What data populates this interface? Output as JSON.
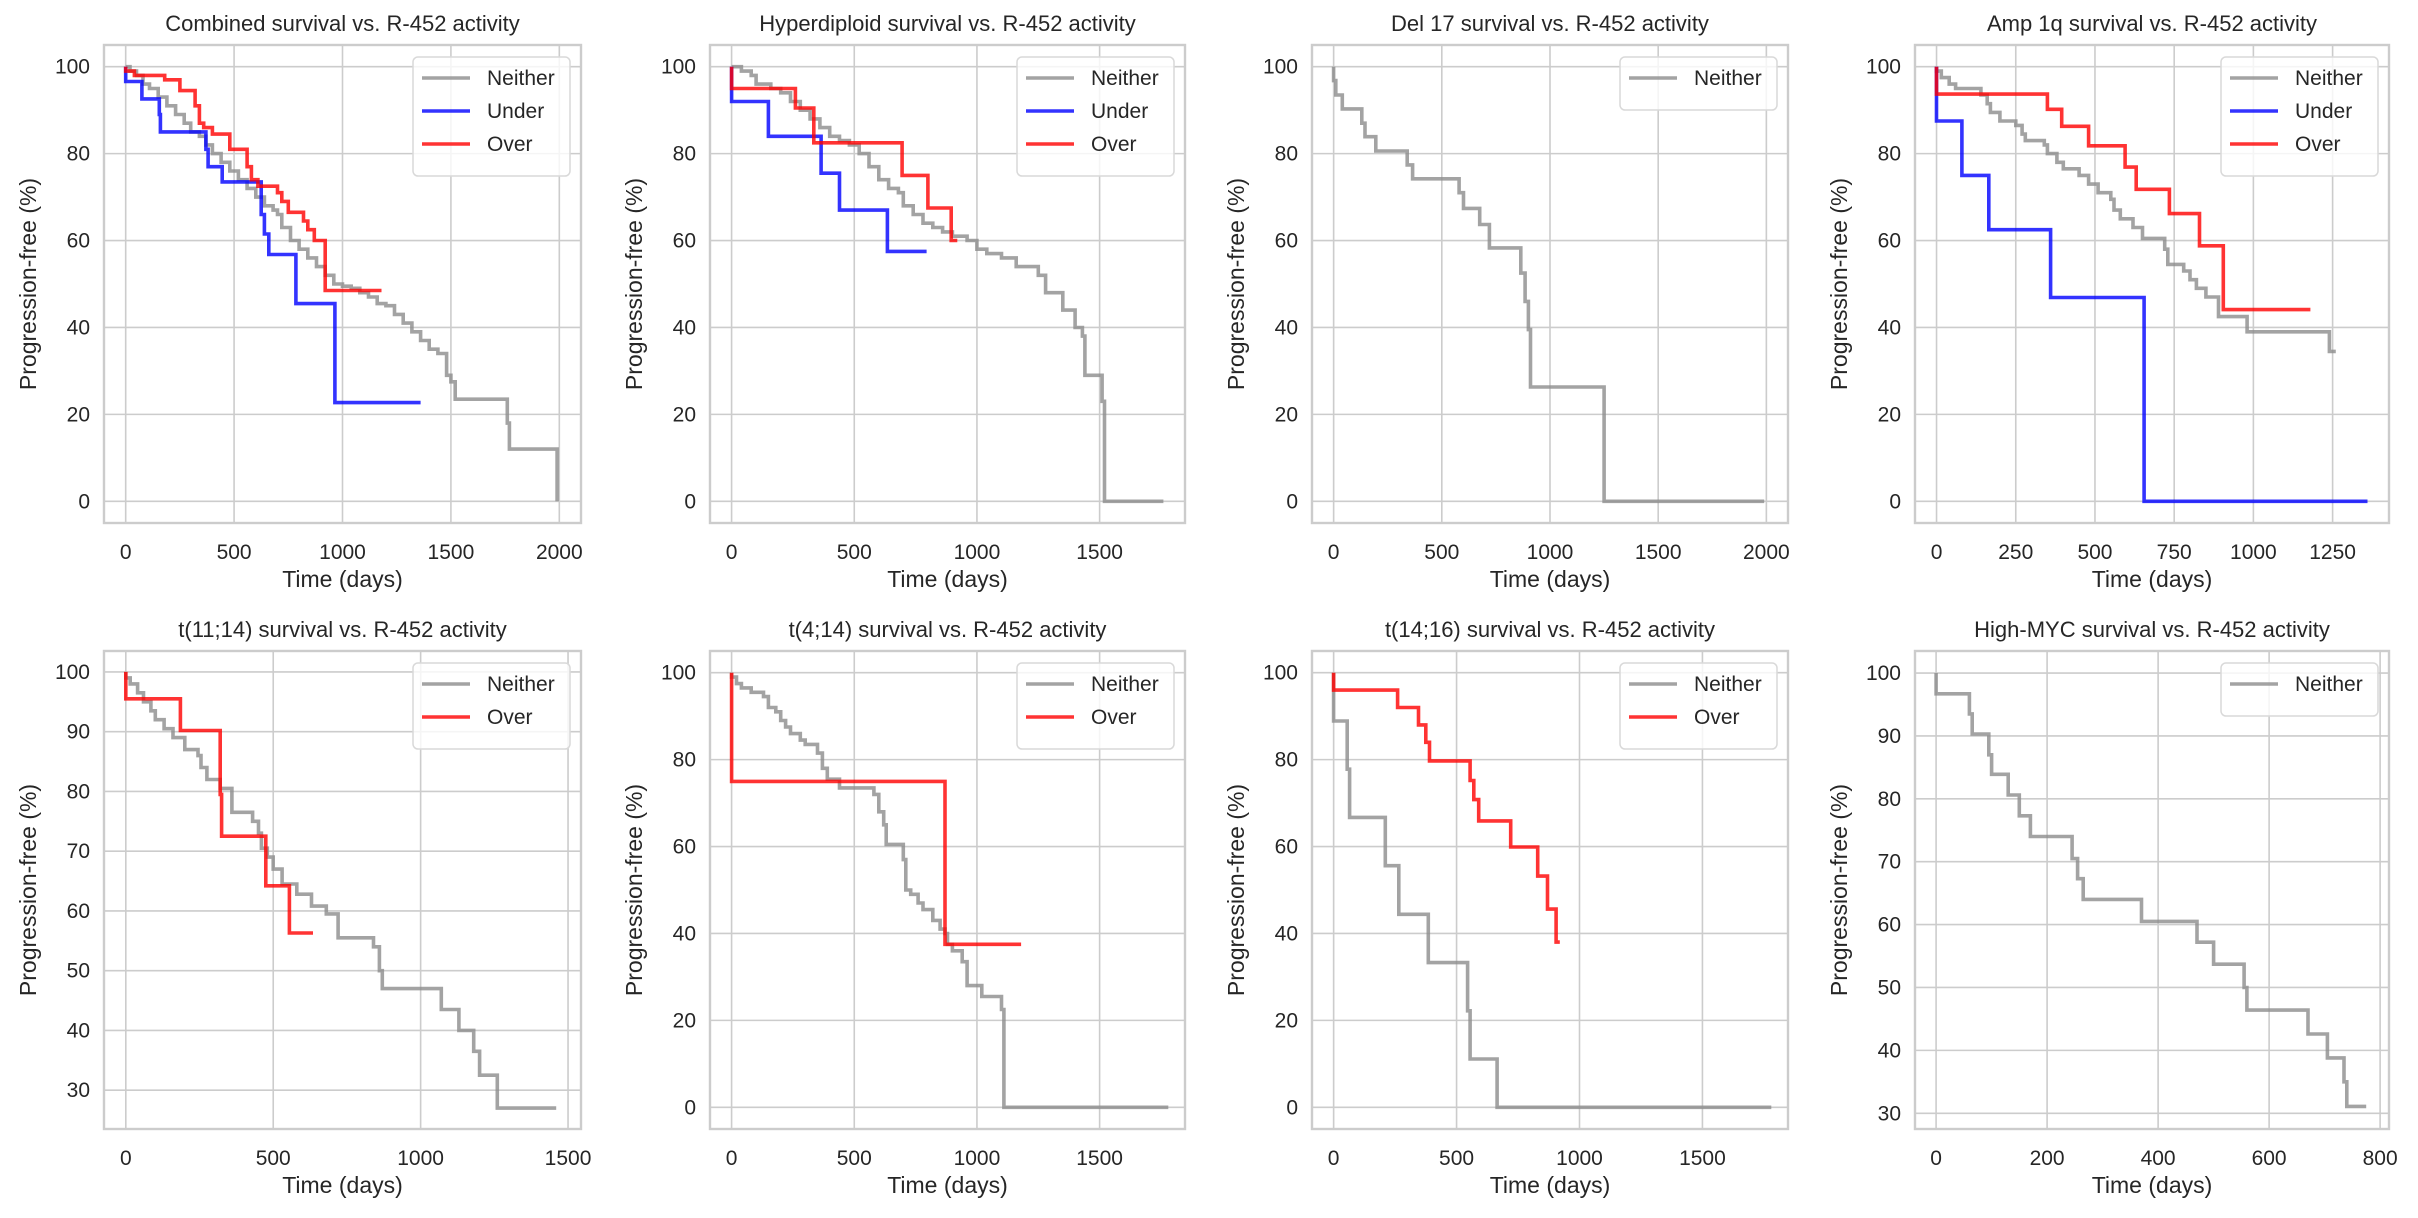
{
  "figure": {
    "legend_colors": {
      "Neither": "#8c8c8c",
      "Under": "#0000ff",
      "Over": "#ff0000"
    },
    "xlabel": "Time (days)",
    "ylabel": "Progression-free (%)"
  },
  "chart_data": [
    {
      "type": "line",
      "title": "Combined survival vs. R-452 activity",
      "xlabel": "Time (days)",
      "ylabel": "Progression-free (%)",
      "xlim": [
        -100,
        2100
      ],
      "ylim": [
        -5,
        105
      ],
      "xticks": [
        0,
        500,
        1000,
        1500,
        2000
      ],
      "yticks": [
        0,
        20,
        40,
        60,
        80,
        100
      ],
      "grid": true,
      "legend": "top-right",
      "series": [
        {
          "name": "Neither",
          "step": true,
          "x": [
            0,
            20,
            50,
            80,
            110,
            150,
            190,
            230,
            270,
            300,
            340,
            370,
            400,
            440,
            480,
            520,
            560,
            600,
            640,
            680,
            700,
            720,
            760,
            800,
            840,
            880,
            920,
            960,
            1000,
            1040,
            1080,
            1120,
            1160,
            1200,
            1240,
            1280,
            1320,
            1360,
            1400,
            1420,
            1440,
            1480,
            1500,
            1520,
            1760,
            1770,
            1990
          ],
          "y": [
            100,
            99,
            98,
            96,
            95,
            93,
            91,
            89,
            87,
            85,
            84,
            82,
            80,
            78,
            76,
            74,
            72,
            70,
            68,
            67,
            66,
            63,
            60,
            58,
            56,
            54,
            52,
            50,
            49.5,
            49,
            48,
            47,
            45.5,
            45,
            43,
            41,
            39,
            37,
            35,
            35,
            34,
            29,
            27.5,
            23.5,
            18,
            12,
            0
          ]
        },
        {
          "name": "Under",
          "step": true,
          "x": [
            0,
            75,
            155,
            160,
            370,
            380,
            445,
            625,
            640,
            660,
            785,
            965,
            1360
          ],
          "y": [
            96.6,
            92.6,
            89,
            85,
            81,
            77,
            73.5,
            66,
            61.5,
            56.8,
            45.5,
            22.7,
            22.7
          ]
        },
        {
          "name": "Over",
          "step": true,
          "x": [
            0,
            40,
            180,
            250,
            320,
            340,
            360,
            400,
            480,
            560,
            580,
            610,
            700,
            720,
            750,
            820,
            840,
            870,
            920,
            1180
          ],
          "y": [
            99,
            98,
            97,
            94.5,
            91,
            87,
            86,
            84.5,
            81,
            77,
            74,
            72.5,
            71,
            69,
            66.5,
            64.5,
            62.5,
            60,
            48.5,
            48.5
          ]
        }
      ]
    },
    {
      "type": "line",
      "title": "Hyperdiploid survival vs. R-452 activity",
      "xlabel": "Time (days)",
      "ylabel": "Progression-free (%)",
      "xlim": [
        -88,
        1848
      ],
      "ylim": [
        -5,
        105
      ],
      "xticks": [
        0,
        500,
        1000,
        1500
      ],
      "yticks": [
        0,
        20,
        40,
        60,
        80,
        100
      ],
      "grid": true,
      "legend": "top-right",
      "series": [
        {
          "name": "Neither",
          "step": true,
          "x": [
            0,
            40,
            80,
            100,
            160,
            200,
            240,
            280,
            320,
            360,
            400,
            440,
            480,
            520,
            560,
            600,
            640,
            680,
            700,
            740,
            780,
            820,
            860,
            900,
            960,
            1000,
            1040,
            1100,
            1160,
            1200,
            1250,
            1280,
            1320,
            1350,
            1400,
            1430,
            1440,
            1510,
            1520,
            1760
          ],
          "y": [
            100,
            99,
            98,
            96,
            95,
            94,
            92,
            90,
            88,
            86,
            84,
            83,
            82,
            80,
            77,
            74,
            72,
            71,
            68,
            66,
            64,
            63,
            62,
            61,
            60,
            58,
            57,
            56,
            54,
            54,
            52,
            48,
            48,
            44,
            40,
            38,
            29,
            23,
            0,
            0
          ]
        },
        {
          "name": "Under",
          "step": true,
          "x": [
            0,
            150,
            365,
            440,
            635,
            795
          ],
          "y": [
            92,
            84,
            75.5,
            67,
            57.5,
            57.5
          ]
        },
        {
          "name": "Over",
          "step": true,
          "x": [
            0,
            260,
            335,
            695,
            800,
            895,
            920
          ],
          "y": [
            95,
            90.5,
            82.5,
            75,
            67.5,
            60,
            60
          ]
        }
      ]
    },
    {
      "type": "line",
      "title": "Del 17 survival vs. R-452 activity",
      "xlabel": "Time (days)",
      "ylabel": "Progression-free (%)",
      "xlim": [
        -100,
        2100
      ],
      "ylim": [
        -5,
        105
      ],
      "xticks": [
        0,
        500,
        1000,
        1500,
        2000
      ],
      "yticks": [
        0,
        20,
        40,
        60,
        80,
        100
      ],
      "grid": true,
      "legend": "top-right",
      "series": [
        {
          "name": "Neither",
          "step": true,
          "x": [
            0,
            10,
            40,
            130,
            145,
            195,
            340,
            365,
            580,
            600,
            675,
            720,
            865,
            885,
            900,
            910,
            1250,
            1990
          ],
          "y": [
            96.8,
            93.5,
            90.3,
            87,
            83.9,
            80.6,
            77.4,
            74.2,
            71,
            67.4,
            63.7,
            58.3,
            52.5,
            46,
            39.5,
            26.3,
            0,
            0
          ]
        }
      ]
    },
    {
      "type": "line",
      "title": "Amp 1q survival vs. R-452 activity",
      "xlabel": "Time (days)",
      "ylabel": "Progression-free (%)",
      "xlim": [
        -68,
        1428
      ],
      "ylim": [
        -5,
        105
      ],
      "xticks": [
        0,
        250,
        500,
        750,
        1000,
        1250
      ],
      "yticks": [
        0,
        20,
        40,
        60,
        80,
        100
      ],
      "grid": true,
      "legend": "top-right",
      "series": [
        {
          "name": "Neither",
          "step": true,
          "x": [
            0,
            15,
            40,
            60,
            140,
            160,
            170,
            200,
            250,
            270,
            280,
            340,
            350,
            380,
            400,
            450,
            480,
            510,
            550,
            560,
            580,
            620,
            650,
            720,
            730,
            780,
            800,
            820,
            850,
            890,
            980,
            1240,
            1260
          ],
          "y": [
            99,
            97.5,
            96,
            95,
            93.5,
            91.5,
            89.5,
            87.5,
            86.5,
            84.5,
            83,
            82,
            80,
            78,
            76.5,
            75,
            73,
            71,
            69.5,
            67,
            65,
            63,
            60.5,
            58,
            54.5,
            53,
            51,
            49,
            47,
            42.5,
            39,
            34.5,
            34.5
          ]
        },
        {
          "name": "Under",
          "step": true,
          "x": [
            0,
            80,
            165,
            360,
            655,
            1360
          ],
          "y": [
            87.5,
            75,
            62.5,
            46.9,
            0,
            0
          ]
        },
        {
          "name": "Over",
          "step": true,
          "x": [
            0,
            350,
            395,
            480,
            595,
            630,
            735,
            830,
            905,
            1180
          ],
          "y": [
            93.7,
            90.2,
            86.3,
            81.8,
            76.9,
            71.8,
            66.2,
            58.8,
            44.1,
            44.1
          ]
        }
      ]
    },
    {
      "type": "line",
      "title": "t(11;14) survival vs. R-452 activity",
      "xlabel": "Time (days)",
      "ylabel": "Progression-free (%)",
      "xlim": [
        -74,
        1544
      ],
      "ylim": [
        23.5,
        103.5
      ],
      "xticks": [
        0,
        500,
        1000,
        1500
      ],
      "yticks": [
        30,
        40,
        50,
        60,
        70,
        80,
        90,
        100
      ],
      "grid": true,
      "legend": "top-right",
      "series": [
        {
          "name": "Neither",
          "step": true,
          "x": [
            0,
            15,
            40,
            60,
            85,
            100,
            130,
            160,
            200,
            245,
            255,
            275,
            320,
            360,
            430,
            450,
            460,
            480,
            500,
            530,
            580,
            630,
            680,
            720,
            840,
            860,
            870,
            1070,
            1130,
            1180,
            1200,
            1260,
            1460
          ],
          "y": [
            99,
            98,
            96.5,
            95,
            93.5,
            92,
            90.5,
            89,
            87,
            86,
            84,
            82,
            80.5,
            76.5,
            75,
            73,
            70.5,
            69,
            67,
            64.5,
            62.8,
            60.8,
            59.5,
            55.5,
            54,
            50,
            47,
            43.5,
            40,
            36.5,
            32.5,
            27,
            27
          ]
        },
        {
          "name": "Over",
          "step": true,
          "x": [
            0,
            185,
            320,
            325,
            475,
            555,
            635
          ],
          "y": [
            95.5,
            90.2,
            79.5,
            72.5,
            64.2,
            56.3,
            56.3
          ]
        }
      ]
    },
    {
      "type": "line",
      "title": "t(4;14) survival vs. R-452 activity",
      "xlabel": "Time (days)",
      "ylabel": "Progression-free (%)",
      "xlim": [
        -88,
        1848
      ],
      "ylim": [
        -5,
        105
      ],
      "xticks": [
        0,
        500,
        1000,
        1500
      ],
      "yticks": [
        0,
        20,
        40,
        60,
        80,
        100
      ],
      "grid": true,
      "legend": "top-right",
      "series": [
        {
          "name": "Neither",
          "step": true,
          "x": [
            0,
            20,
            40,
            80,
            130,
            150,
            180,
            200,
            220,
            240,
            280,
            300,
            350,
            370,
            390,
            440,
            580,
            600,
            620,
            630,
            700,
            710,
            730,
            760,
            780,
            820,
            850,
            870,
            880,
            900,
            940,
            960,
            1020,
            1100,
            1110,
            1780
          ],
          "y": [
            99,
            97.5,
            96.5,
            95.5,
            94.5,
            92,
            91,
            89,
            87.5,
            86,
            84.5,
            83.5,
            81.5,
            78,
            75.5,
            73.5,
            72,
            68,
            65,
            60.5,
            57,
            50,
            49,
            47,
            45.5,
            43,
            41,
            40,
            37.5,
            36,
            33.5,
            28,
            25.5,
            22.5,
            0,
            0
          ]
        },
        {
          "name": "Over",
          "step": true,
          "x": [
            0,
            870,
            1180
          ],
          "y": [
            75,
            37.5,
            37.5
          ]
        }
      ]
    },
    {
      "type": "line",
      "title": "t(14;16) survival vs. R-452 activity",
      "xlabel": "Time (days)",
      "ylabel": "Progression-free (%)",
      "xlim": [
        -88,
        1848
      ],
      "ylim": [
        -5,
        105
      ],
      "xticks": [
        0,
        500,
        1000,
        1500
      ],
      "yticks": [
        0,
        20,
        40,
        60,
        80,
        100
      ],
      "grid": true,
      "legend": "top-right",
      "series": [
        {
          "name": "Neither",
          "step": true,
          "x": [
            0,
            55,
            65,
            210,
            265,
            385,
            545,
            555,
            665,
            1780
          ],
          "y": [
            88.9,
            77.8,
            66.7,
            55.6,
            44.4,
            33.3,
            22.2,
            11.1,
            0,
            0
          ]
        },
        {
          "name": "Over",
          "step": true,
          "x": [
            0,
            260,
            345,
            375,
            390,
            555,
            570,
            590,
            720,
            830,
            870,
            905,
            920
          ],
          "y": [
            96,
            92,
            88,
            84,
            79.7,
            75.2,
            70.8,
            65.9,
            59.9,
            53.2,
            45.6,
            38,
            38
          ]
        }
      ]
    },
    {
      "type": "line",
      "title": "High-MYC survival vs. R-452 activity",
      "xlabel": "Time (days)",
      "ylabel": "Progression-free (%)",
      "xlim": [
        -38,
        816
      ],
      "ylim": [
        27.5,
        103.5
      ],
      "xticks": [
        0,
        200,
        400,
        600,
        800
      ],
      "yticks": [
        30,
        40,
        50,
        60,
        70,
        80,
        90,
        100
      ],
      "grid": true,
      "legend": "top-right",
      "series": [
        {
          "name": "Neither",
          "step": true,
          "x": [
            0,
            60,
            65,
            95,
            100,
            130,
            150,
            170,
            245,
            255,
            265,
            370,
            470,
            500,
            555,
            560,
            670,
            705,
            735,
            740,
            775
          ],
          "y": [
            96.7,
            93.5,
            90.3,
            87,
            83.9,
            80.6,
            77.3,
            74,
            70.5,
            67.3,
            64,
            60.5,
            57.2,
            53.7,
            50,
            46.4,
            42.6,
            38.8,
            35,
            31.1,
            31.1
          ]
        }
      ]
    }
  ]
}
